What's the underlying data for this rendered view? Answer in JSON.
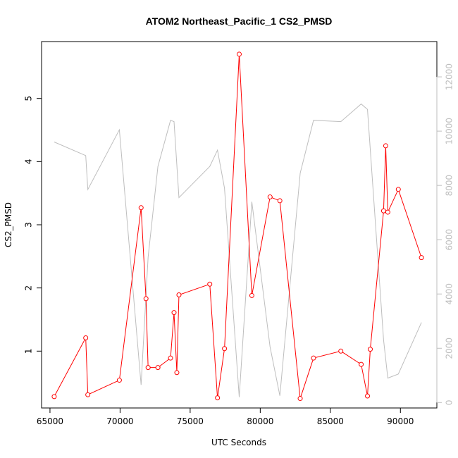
{
  "chart_data": {
    "type": "line",
    "title": "ATOM2 Northeast_Pacific_1 CS2_PMSD",
    "xlabel": "UTC Seconds",
    "ylabel": "CS2_PMSD",
    "xlim": [
      64400,
      92600
    ],
    "ylim": [
      0.1,
      5.9
    ],
    "y2lim": [
      -200,
      13300
    ],
    "x_ticks": [
      65000,
      70000,
      75000,
      80000,
      85000,
      90000
    ],
    "x_tick_labels": [
      "65000",
      "70000",
      "75000",
      "80000",
      "85000",
      "90000"
    ],
    "y_ticks": [
      1,
      2,
      3,
      4,
      5
    ],
    "y_tick_labels": [
      "1",
      "2",
      "3",
      "4",
      "5"
    ],
    "y2_ticks": [
      0,
      2000,
      4000,
      6000,
      8000,
      10000,
      12000
    ],
    "y2_tick_labels": [
      "0",
      "2000",
      "4000",
      "6000",
      "8000",
      "10000",
      "12000"
    ],
    "colors": {
      "primary": "#ff0000",
      "secondary": "#bebebe",
      "axis": "#000000"
    },
    "series": [
      {
        "axis": "left",
        "style": "line-points",
        "x": [
          65300,
          67550,
          67700,
          69950,
          71500,
          71850,
          72000,
          72700,
          73600,
          73850,
          74050,
          74200,
          76400,
          76950,
          77450,
          78500,
          79400,
          80700,
          81400,
          82850,
          83800,
          85750,
          87200,
          87650,
          87850,
          88800,
          88950,
          89100,
          89850,
          91500
        ],
        "y": [
          0.28,
          1.21,
          0.31,
          0.54,
          3.27,
          1.83,
          0.74,
          0.74,
          0.89,
          1.61,
          0.66,
          1.89,
          2.06,
          0.26,
          1.04,
          5.7,
          1.88,
          3.44,
          3.38,
          0.25,
          0.89,
          1.0,
          0.79,
          0.29,
          1.03,
          3.22,
          4.25,
          3.2,
          3.56,
          2.48
        ]
      },
      {
        "axis": "right",
        "style": "line",
        "x": [
          65300,
          67550,
          67700,
          69950,
          71500,
          72000,
          72700,
          73600,
          73850,
          74200,
          76400,
          76950,
          77450,
          78500,
          79400,
          80700,
          81400,
          82850,
          83800,
          85750,
          87200,
          87650,
          88800,
          89100,
          89850,
          91500
        ],
        "y": [
          9600,
          9100,
          7850,
          10050,
          650,
          5350,
          8700,
          10400,
          10350,
          7550,
          8700,
          9300,
          7900,
          200,
          7400,
          2050,
          250,
          8450,
          10400,
          10350,
          11000,
          10800,
          2300,
          900,
          1050,
          2950
        ]
      }
    ]
  }
}
